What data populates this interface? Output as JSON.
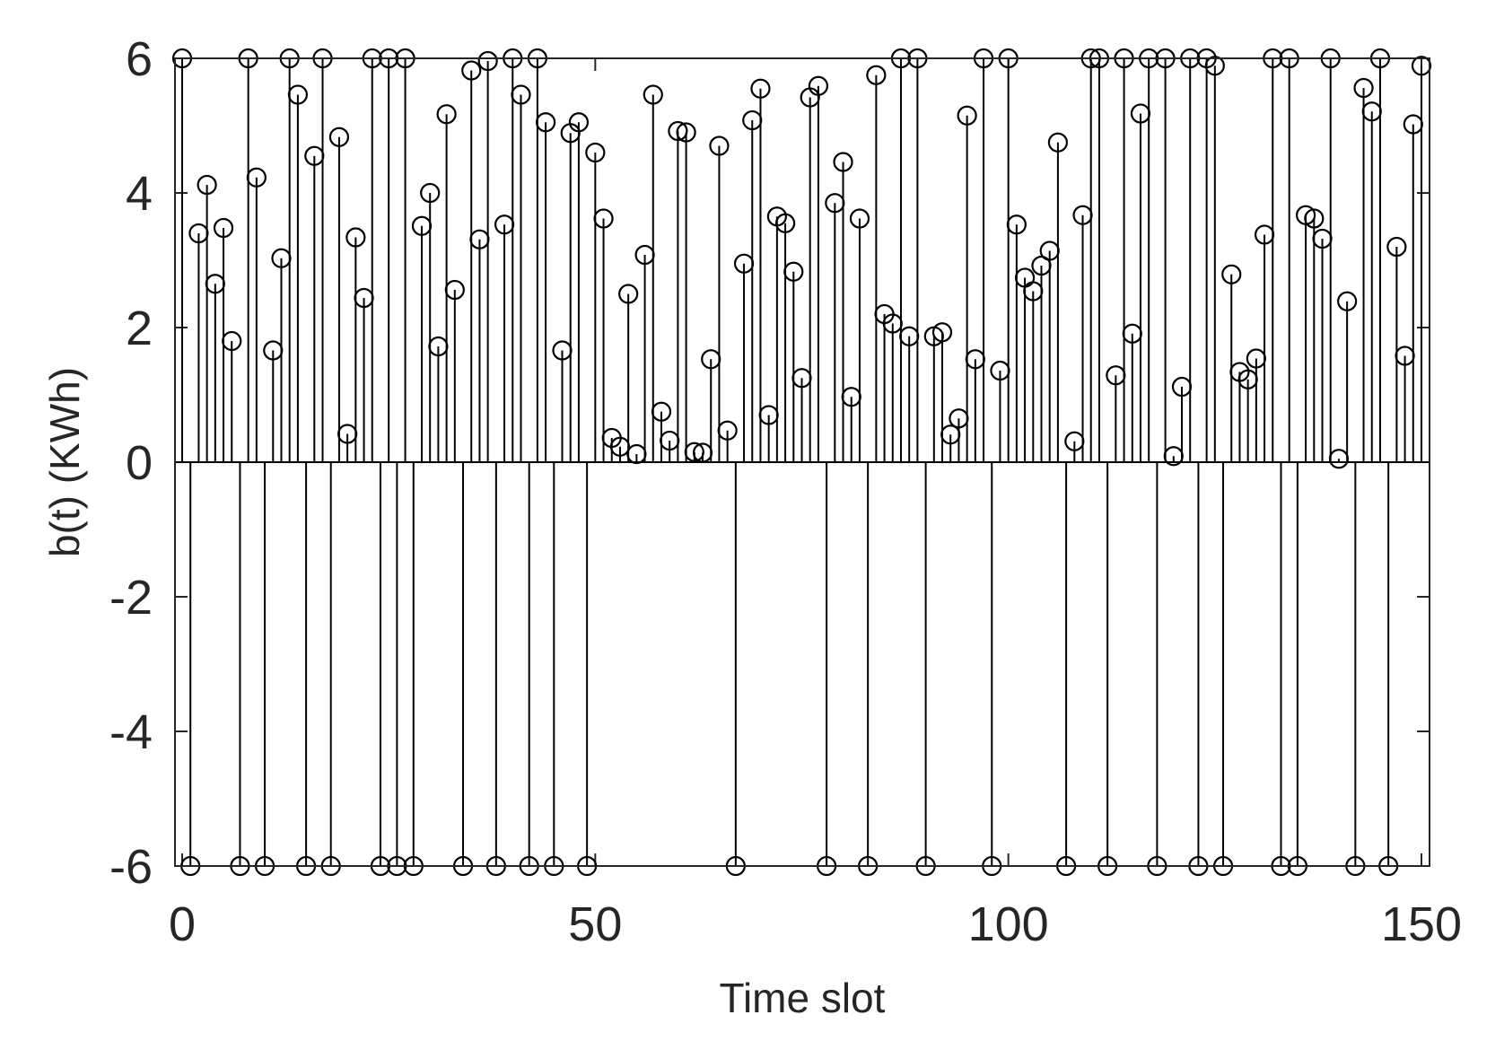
{
  "chart_data": {
    "type": "stem",
    "xlabel": "Time slot",
    "ylabel": "b(t) (KWh)",
    "xlim": [
      0,
      150
    ],
    "ylim": [
      -6,
      6
    ],
    "xticks": [
      "0",
      "50",
      "100",
      "150"
    ],
    "yticks": [
      "6",
      "4",
      "2",
      "0",
      "-2",
      "-4",
      "-6"
    ],
    "grid": false,
    "marker": "open-circle",
    "color": "#000000",
    "series": [
      {
        "values": [
          6,
          -6,
          3.4,
          4.12,
          2.65,
          3.48,
          1.8,
          -6,
          6,
          4.23,
          -6,
          1.66,
          3.03,
          6,
          5.46,
          -6,
          4.55,
          6,
          -6,
          4.83,
          0.42,
          3.34,
          2.44,
          6,
          -6,
          6,
          -6,
          6,
          -6,
          3.51,
          4.0,
          1.72,
          5.17,
          2.56,
          -6,
          5.82,
          3.31,
          5.96,
          -6,
          3.53,
          6,
          5.46,
          -6,
          6,
          5.05,
          -6,
          1.66,
          4.89,
          5.05,
          -6,
          4.6,
          3.62,
          0.36,
          0.23,
          2.5,
          0.12,
          3.08,
          5.46,
          0.75,
          0.32,
          4.92,
          4.9,
          0.15,
          0.14,
          1.53,
          4.7,
          0.47,
          -6,
          2.95,
          5.08,
          5.55,
          0.7,
          3.65,
          3.55,
          2.83,
          1.25,
          5.42,
          5.59,
          -6,
          3.85,
          4.46,
          0.97,
          3.62,
          -6,
          5.75,
          2.2,
          2.06,
          6,
          1.87,
          6,
          -6,
          1.87,
          1.93,
          0.41,
          0.65,
          5.15,
          1.53,
          6,
          -6,
          1.36,
          6,
          3.53,
          2.74,
          2.54,
          2.92,
          3.14,
          4.75,
          -6,
          0.31,
          3.67,
          6,
          6,
          -6,
          1.29,
          6,
          1.91,
          5.18,
          6,
          -6,
          6,
          0.09,
          1.12,
          6,
          -6,
          6,
          5.89,
          -6,
          2.79,
          1.34,
          1.23,
          1.54,
          3.38,
          6,
          -6,
          6,
          -6,
          3.67,
          3.62,
          3.32,
          6,
          0.05,
          2.39,
          -6,
          5.56,
          5.21,
          6,
          -6,
          3.2,
          1.58,
          5.02,
          5.89
        ]
      }
    ]
  }
}
